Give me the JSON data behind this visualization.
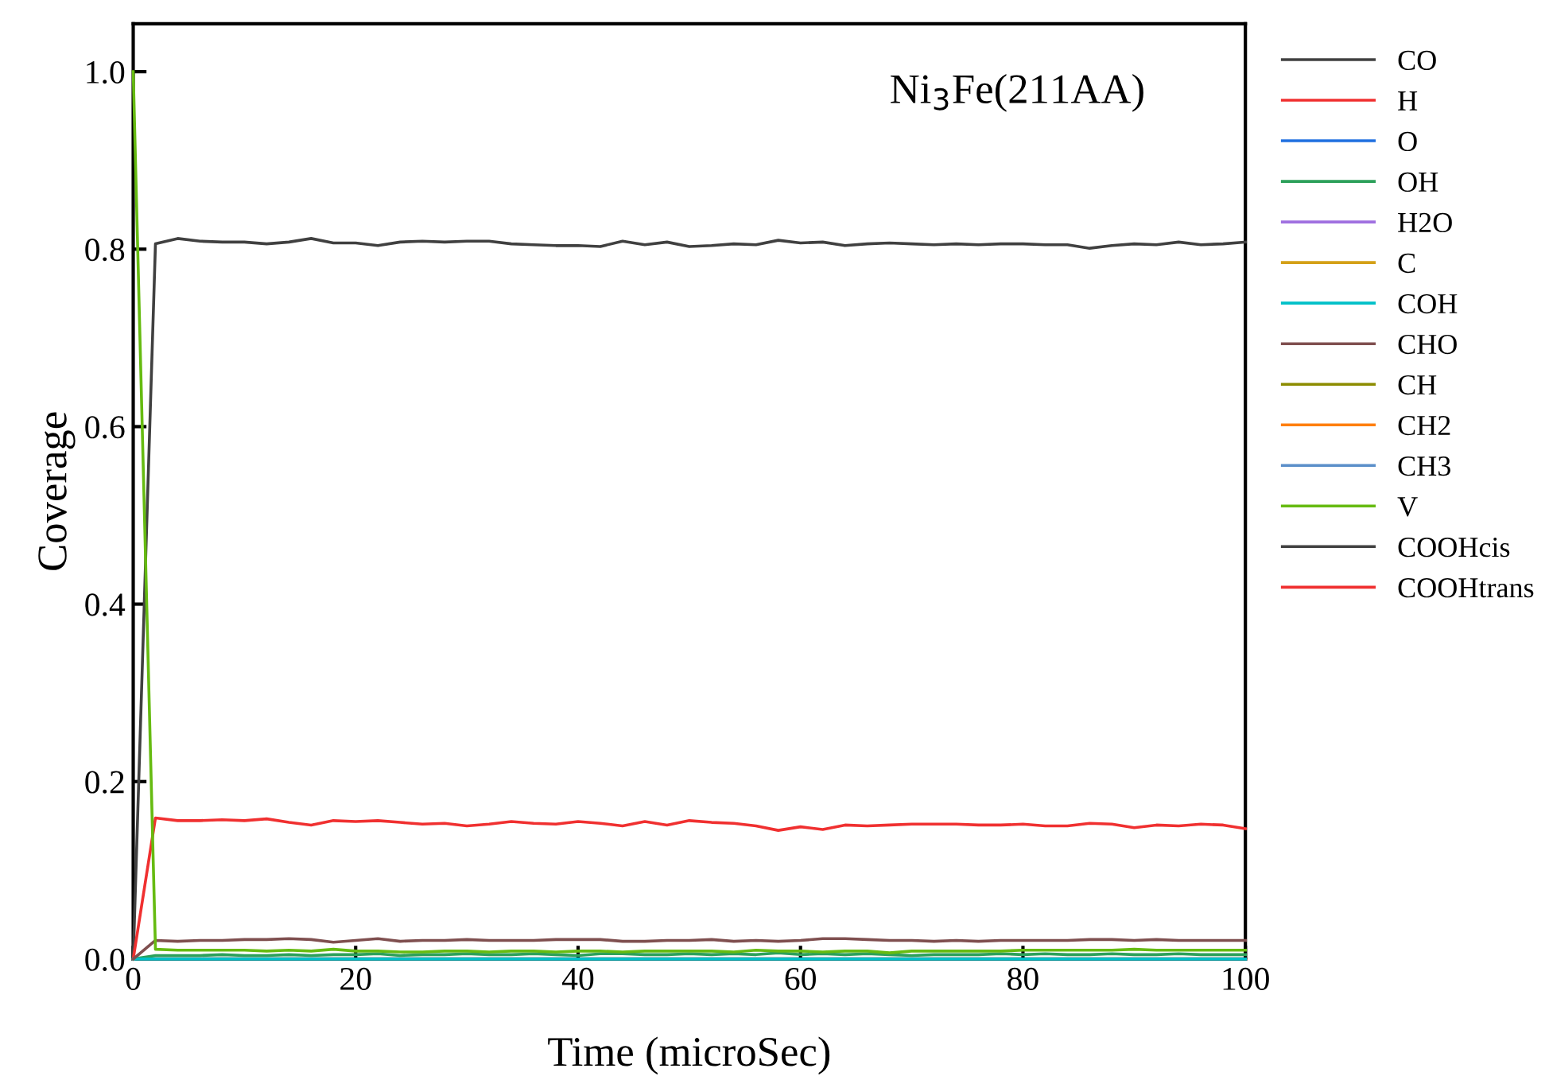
{
  "chart_data": {
    "type": "line",
    "xlabel": "Time (microSec)",
    "ylabel": "Coverage",
    "annotations": [
      "Ni$_{3}$Fe(211AA)"
    ],
    "x": [
      0,
      2,
      4,
      6,
      8,
      10,
      12,
      14,
      16,
      18,
      20,
      22,
      24,
      26,
      28,
      30,
      32,
      34,
      36,
      38,
      40,
      42,
      44,
      46,
      48,
      50,
      52,
      54,
      56,
      58,
      60,
      62,
      64,
      66,
      68,
      70,
      72,
      74,
      76,
      78,
      80,
      82,
      84,
      86,
      88,
      90,
      92,
      94,
      96,
      98,
      100
    ],
    "xlim": [
      0,
      100
    ],
    "xticks": [
      0,
      20,
      40,
      60,
      80,
      100
    ],
    "ylim": [
      0,
      1.054
    ],
    "yticks": [
      {
        "value": 0,
        "label": "0.0"
      },
      {
        "value": 0.2,
        "label": "0.2"
      },
      {
        "value": 0.4,
        "label": "0.4"
      },
      {
        "value": 0.6,
        "label": "0.6"
      },
      {
        "value": 0.8,
        "label": "0.8"
      },
      {
        "value": 1.0,
        "label": "1.0"
      }
    ],
    "grid": false,
    "legend": "right",
    "marker": "none",
    "line_style": "solid",
    "series": [
      {
        "name": "CO",
        "color": "#404040",
        "values": [
          0,
          0.806,
          0.812,
          0.809,
          0.808,
          0.808,
          0.806,
          0.808,
          0.812,
          0.807,
          0.807,
          0.804,
          0.808,
          0.809,
          0.808,
          0.809,
          0.809,
          0.806,
          0.805,
          0.804,
          0.804,
          0.803,
          0.809,
          0.805,
          0.808,
          0.803,
          0.804,
          0.806,
          0.805,
          0.81,
          0.807,
          0.808,
          0.804,
          0.806,
          0.807,
          0.806,
          0.805,
          0.806,
          0.805,
          0.806,
          0.806,
          0.805,
          0.805,
          0.801,
          0.804,
          0.806,
          0.805,
          0.808,
          0.805,
          0.806,
          0.808
        ]
      },
      {
        "name": "H",
        "color": "#f03030",
        "values": [
          0,
          0.159,
          0.156,
          0.156,
          0.157,
          0.156,
          0.158,
          0.154,
          0.151,
          0.156,
          0.155,
          0.156,
          0.154,
          0.152,
          0.153,
          0.15,
          0.152,
          0.155,
          0.153,
          0.152,
          0.155,
          0.153,
          0.15,
          0.155,
          0.151,
          0.156,
          0.154,
          0.153,
          0.15,
          0.145,
          0.149,
          0.146,
          0.151,
          0.15,
          0.151,
          0.152,
          0.152,
          0.152,
          0.151,
          0.151,
          0.152,
          0.15,
          0.15,
          0.153,
          0.152,
          0.148,
          0.151,
          0.15,
          0.152,
          0.151,
          0.147
        ]
      },
      {
        "name": "O",
        "color": "#1f6fe0",
        "values": [
          null,
          null,
          null,
          null,
          null,
          null,
          null,
          null,
          null,
          null,
          null,
          null,
          null,
          null,
          null,
          null,
          null,
          null,
          null,
          null,
          null,
          null,
          null,
          null,
          null,
          null,
          null,
          null,
          null,
          null,
          null,
          null,
          null,
          null,
          null,
          null,
          null,
          null,
          null,
          null,
          null,
          null,
          null,
          null,
          null,
          null,
          null,
          null,
          null,
          null,
          null
        ]
      },
      {
        "name": "OH",
        "color": "#2ca05a",
        "values": [
          0,
          0.004,
          0.004,
          0.004,
          0.005,
          0.004,
          0.004,
          0.005,
          0.004,
          0.005,
          0.005,
          0.006,
          0.004,
          0.005,
          0.005,
          0.006,
          0.005,
          0.005,
          0.006,
          0.005,
          0.004,
          0.006,
          0.006,
          0.005,
          0.005,
          0.006,
          0.005,
          0.006,
          0.005,
          0.007,
          0.005,
          0.006,
          0.005,
          0.006,
          0.005,
          0.004,
          0.005,
          0.005,
          0.005,
          0.006,
          0.005,
          0.006,
          0.005,
          0.005,
          0.006,
          0.005,
          0.005,
          0.006,
          0.005,
          0.005,
          0.005
        ]
      },
      {
        "name": "H2O",
        "color": "#a070e0",
        "values": [
          null,
          null,
          null,
          null,
          null,
          null,
          null,
          null,
          null,
          null,
          null,
          null,
          null,
          null,
          null,
          null,
          null,
          null,
          null,
          null,
          null,
          null,
          null,
          null,
          null,
          null,
          null,
          null,
          null,
          null,
          null,
          null,
          null,
          null,
          null,
          null,
          null,
          null,
          null,
          null,
          null,
          null,
          null,
          null,
          null,
          null,
          null,
          null,
          null,
          null,
          null
        ]
      },
      {
        "name": "C",
        "color": "#d4a017",
        "values": [
          null,
          null,
          null,
          null,
          null,
          null,
          null,
          null,
          null,
          null,
          null,
          null,
          null,
          null,
          null,
          null,
          null,
          null,
          null,
          null,
          null,
          null,
          null,
          null,
          null,
          null,
          null,
          null,
          null,
          null,
          null,
          null,
          null,
          null,
          null,
          null,
          null,
          null,
          null,
          null,
          null,
          null,
          null,
          null,
          null,
          null,
          null,
          null,
          null,
          null,
          null
        ]
      },
      {
        "name": "COH",
        "color": "#00c0c8",
        "values": [
          0,
          0,
          0,
          0,
          0,
          0,
          0,
          0,
          0,
          0,
          0,
          0,
          0,
          0,
          0,
          0,
          0,
          0,
          0,
          0,
          0,
          0,
          0,
          0,
          0,
          0,
          0,
          0,
          0,
          0,
          0,
          0,
          0,
          0,
          0,
          0,
          0,
          0,
          0,
          0,
          0,
          0,
          0,
          0,
          0,
          0,
          0,
          0,
          0,
          0,
          0
        ]
      },
      {
        "name": "CHO",
        "color": "#7f4f4f",
        "values": [
          0,
          0.021,
          0.02,
          0.021,
          0.021,
          0.022,
          0.022,
          0.023,
          0.022,
          0.019,
          0.021,
          0.023,
          0.02,
          0.021,
          0.021,
          0.022,
          0.021,
          0.021,
          0.021,
          0.022,
          0.022,
          0.022,
          0.02,
          0.02,
          0.021,
          0.021,
          0.022,
          0.02,
          0.021,
          0.02,
          0.021,
          0.023,
          0.023,
          0.022,
          0.021,
          0.021,
          0.02,
          0.021,
          0.02,
          0.021,
          0.021,
          0.021,
          0.021,
          0.022,
          0.022,
          0.021,
          0.022,
          0.021,
          0.021,
          0.021,
          0.021
        ]
      },
      {
        "name": "CH",
        "color": "#8c8c00",
        "values": [
          null,
          null,
          null,
          null,
          null,
          null,
          null,
          null,
          null,
          null,
          null,
          null,
          null,
          null,
          null,
          null,
          null,
          null,
          null,
          null,
          null,
          null,
          null,
          null,
          null,
          null,
          null,
          null,
          null,
          null,
          null,
          null,
          null,
          null,
          null,
          null,
          null,
          null,
          null,
          null,
          null,
          null,
          null,
          null,
          null,
          null,
          null,
          null,
          null,
          null,
          null
        ]
      },
      {
        "name": "CH2",
        "color": "#ff7f0e",
        "values": [
          null,
          null,
          null,
          null,
          null,
          null,
          null,
          null,
          null,
          null,
          null,
          null,
          null,
          null,
          null,
          null,
          null,
          null,
          null,
          null,
          null,
          null,
          null,
          null,
          null,
          null,
          null,
          null,
          null,
          null,
          null,
          null,
          null,
          null,
          null,
          null,
          null,
          null,
          null,
          null,
          null,
          null,
          null,
          null,
          null,
          null,
          null,
          null,
          null,
          null,
          null
        ]
      },
      {
        "name": "CH3",
        "color": "#5b8fc9",
        "values": [
          null,
          null,
          null,
          null,
          null,
          null,
          null,
          null,
          null,
          null,
          null,
          null,
          null,
          null,
          null,
          null,
          null,
          null,
          null,
          null,
          null,
          null,
          null,
          null,
          null,
          null,
          null,
          null,
          null,
          null,
          null,
          null,
          null,
          null,
          null,
          null,
          null,
          null,
          null,
          null,
          null,
          null,
          null,
          null,
          null,
          null,
          null,
          null,
          null,
          null,
          null
        ]
      },
      {
        "name": "V",
        "color": "#66bb11",
        "values": [
          1.0,
          0.011,
          0.01,
          0.01,
          0.01,
          0.01,
          0.009,
          0.01,
          0.009,
          0.011,
          0.009,
          0.009,
          0.008,
          0.008,
          0.009,
          0.009,
          0.008,
          0.009,
          0.009,
          0.008,
          0.009,
          0.009,
          0.008,
          0.009,
          0.009,
          0.009,
          0.009,
          0.008,
          0.01,
          0.009,
          0.009,
          0.008,
          0.009,
          0.009,
          0.007,
          0.009,
          0.009,
          0.009,
          0.009,
          0.009,
          0.01,
          0.01,
          0.01,
          0.01,
          0.01,
          0.011,
          0.01,
          0.01,
          0.01,
          0.01,
          0.01
        ]
      },
      {
        "name": "COOHcis",
        "color": "#404040",
        "values": [
          null,
          null,
          null,
          null,
          null,
          null,
          null,
          null,
          null,
          null,
          null,
          null,
          null,
          null,
          null,
          null,
          null,
          null,
          null,
          null,
          null,
          null,
          null,
          null,
          null,
          null,
          null,
          null,
          null,
          null,
          null,
          null,
          null,
          null,
          null,
          null,
          null,
          null,
          null,
          null,
          null,
          null,
          null,
          null,
          null,
          null,
          null,
          null,
          null,
          null,
          null
        ]
      },
      {
        "name": "COOHtrans",
        "color": "#f03030",
        "values": [
          null,
          null,
          null,
          null,
          null,
          null,
          null,
          null,
          null,
          null,
          null,
          null,
          null,
          null,
          null,
          null,
          null,
          null,
          null,
          null,
          null,
          null,
          null,
          null,
          null,
          null,
          null,
          null,
          null,
          null,
          null,
          null,
          null,
          null,
          null,
          null,
          null,
          null,
          null,
          null,
          null,
          null,
          null,
          null,
          null,
          null,
          null,
          null,
          null,
          null,
          null
        ]
      }
    ]
  }
}
